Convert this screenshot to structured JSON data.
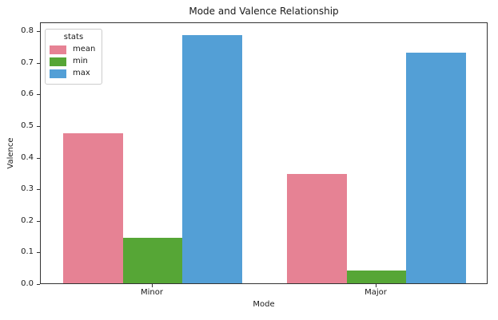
{
  "chart_data": {
    "type": "bar",
    "title": "Mode and Valence Relationship",
    "xlabel": "Mode",
    "ylabel": "Valence",
    "categories": [
      "Minor",
      "Major"
    ],
    "series": [
      {
        "name": "mean",
        "color": "#e68294",
        "values": [
          0.475,
          0.345
        ]
      },
      {
        "name": "min",
        "color": "#56a636",
        "values": [
          0.145,
          0.04
        ]
      },
      {
        "name": "max",
        "color": "#539fd6",
        "values": [
          0.785,
          0.73
        ]
      }
    ],
    "ylim": [
      0,
      0.828
    ],
    "yticks": [
      0.0,
      0.1,
      0.2,
      0.3,
      0.4,
      0.5,
      0.6,
      0.7,
      0.8
    ],
    "ytick_format_decimals": 1,
    "legend_title": "stats",
    "legend_position": "upper left",
    "grid": false,
    "bar_group_width_fraction": 0.8,
    "spine_color": "#333333",
    "background_color": "#ffffff"
  }
}
